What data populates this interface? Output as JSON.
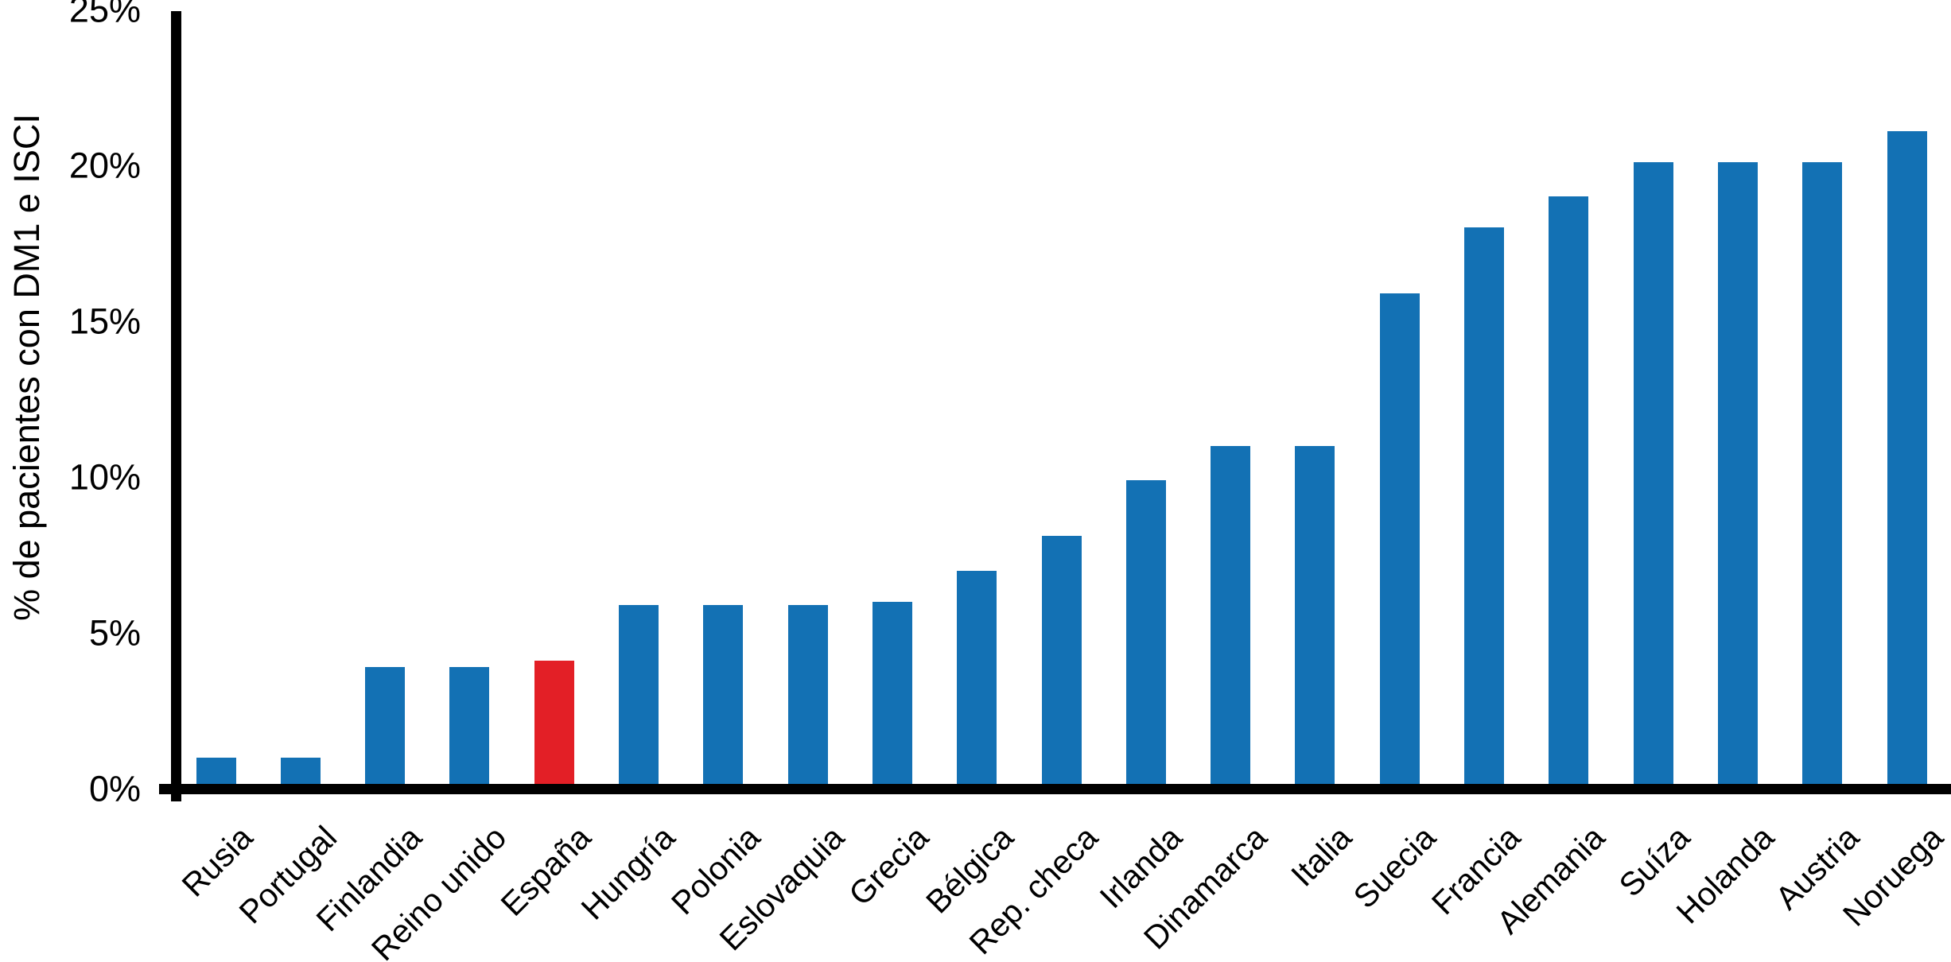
{
  "chart_data": {
    "type": "bar",
    "title": "",
    "xlabel": "",
    "ylabel": "% de pacientes con DM1 e ISCI",
    "ylim": [
      0,
      25
    ],
    "grid": false,
    "legend_position": "none",
    "yticks": [
      {
        "value": 0,
        "label": "0%"
      },
      {
        "value": 5,
        "label": "5%"
      },
      {
        "value": 10,
        "label": "10%"
      },
      {
        "value": 15,
        "label": "15%"
      },
      {
        "value": 20,
        "label": "20%"
      },
      {
        "value": 25,
        "label": "25%"
      }
    ],
    "categories": [
      "Rusia",
      "Portugal",
      "Finlandia",
      "Reino unido",
      "España",
      "Hungría",
      "Polonia",
      "Eslovaquia",
      "Grecia",
      "Bélgica",
      "Rep. checa",
      "Irlanda",
      "Dinamarca",
      "Italia",
      "Suecia",
      "Francia",
      "Alemania",
      "Suíza",
      "Holanda",
      "Austria",
      "Noruega"
    ],
    "values": [
      1.0,
      1.0,
      3.9,
      3.9,
      4.1,
      5.9,
      5.9,
      5.9,
      6.0,
      7.0,
      8.1,
      9.9,
      11.0,
      11.0,
      15.9,
      18.0,
      19.0,
      20.1,
      20.1,
      20.1,
      21.1
    ],
    "highlighted_category": "España",
    "colors": {
      "bar_default": "#1371B4",
      "bar_highlight": "#E31F26",
      "axis": "#000000",
      "text": "#000000",
      "background": "#FFFFFF"
    }
  }
}
